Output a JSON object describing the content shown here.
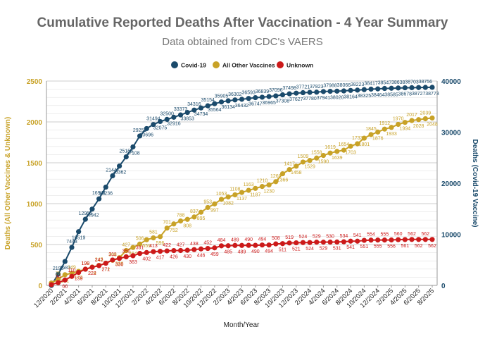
{
  "chart_data": {
    "type": "line",
    "title": "Cumulative Reported Deaths After Vaccination - 4 Year Summary",
    "subtitle": "Data obtained from CDC's VAERS",
    "xlabel": "Month/Year",
    "ylabel_left": "Deaths (All Other Vaccines & Unknown)",
    "ylabel_right": "Deaths (Covid-19 Vaccine)",
    "ylim_left": [
      0,
      2500
    ],
    "ylim_right": [
      0,
      40000
    ],
    "yticks_left": [
      0,
      500,
      1000,
      1500,
      2000,
      2500
    ],
    "yticks_right": [
      0,
      10000,
      20000,
      30000,
      40000
    ],
    "grid": true,
    "legend_position": "top-center",
    "x_tick_labels": [
      "12/2020",
      "2/2021",
      "4/2021",
      "6/2021",
      "8/2021",
      "10/2021",
      "12/2021",
      "2/2022",
      "4/2022",
      "6/2022",
      "8/2022",
      "10/2022",
      "12/2022",
      "2/2023",
      "4/2023",
      "6/2023",
      "8/2023",
      "10/2023",
      "12/2023",
      "2/2024",
      "4/2024",
      "6/2024",
      "8/2024",
      "10/2024",
      "12/2024",
      "2/2025",
      "4/2025",
      "6/2025",
      "8/2025"
    ],
    "series": [
      {
        "name": "Covid-19",
        "axis": "right",
        "color": "#1a4a6b",
        "values": [
          0,
          2196,
          4683,
          7443,
          10519,
          12953,
          14942,
          16941,
          19236,
          21447,
          23362,
          25158,
          27108,
          29251,
          30696,
          31494,
          32075,
          32500,
          32916,
          33373,
          33853,
          34316,
          34734,
          35154,
          35564,
          35905,
          36134,
          36302,
          36432,
          36593,
          36747,
          36839,
          36965,
          37096,
          37308,
          37498,
          37627,
          37721,
          37780,
          37823,
          37941,
          37988,
          38020,
          38066,
          38164,
          38223,
          38325,
          38417,
          38464,
          38547,
          38585,
          38638,
          38678,
          38703,
          38727,
          38756,
          38773
        ]
      },
      {
        "name": "All Other Vaccines",
        "axis": "left",
        "color": "#c8a227",
        "values": [
          29,
          75,
          131,
          149,
          172,
          199,
          224,
          245,
          272,
          308,
          339,
          427,
          464,
          506,
          559,
          581,
          596,
          701,
          752,
          788,
          808,
          837,
          895,
          953,
          997,
          1053,
          1082,
          1108,
          1137,
          1163,
          1187,
          1210,
          1230,
          1269,
          1366,
          1417,
          1458,
          1509,
          1529,
          1558,
          1590,
          1619,
          1639,
          1654,
          1703,
          1733,
          1801,
          1845,
          1876,
          1912,
          1933,
          1970,
          1994,
          2017,
          2028,
          2039,
          2048
        ]
      },
      {
        "name": "Unknown",
        "axis": "left",
        "color": "#cc1a1a",
        "values": [
          9,
          34,
          66,
          110,
          159,
          198,
          222,
          242,
          271,
          311,
          330,
          350,
          363,
          391,
          402,
          413,
          417,
          422,
          426,
          427,
          430,
          438,
          446,
          452,
          459,
          484,
          485,
          489,
          489,
          490,
          490,
          494,
          494,
          508,
          511,
          519,
          521,
          524,
          524,
          529,
          529,
          530,
          531,
          534,
          541,
          541,
          551,
          554,
          555,
          555,
          556,
          560,
          561,
          562,
          562,
          562,
          562
        ]
      }
    ],
    "data_labels": {
      "Covid-19": [
        "2196",
        "4683",
        "7443",
        "10519",
        "12953",
        "14942",
        "16941",
        "19236",
        "21447",
        "23362",
        "25158",
        "27108",
        "29251",
        "30696",
        "31494",
        "32075",
        "32500",
        "32916",
        "33373",
        "33853",
        "34316",
        "34734",
        "35154",
        "35564",
        "35905",
        "36134",
        "36302",
        "36432",
        "36593",
        "36747",
        "36839",
        "36965",
        "37096",
        "37308",
        "37498",
        "37627",
        "37721",
        "37780",
        "37823",
        "37941",
        "37988",
        "38020",
        "38066",
        "38164",
        "38223",
        "38325",
        "38417",
        "38464",
        "38547",
        "38585",
        "38638",
        "38678",
        "38703",
        "38727",
        "38756",
        "38773"
      ],
      "All Other Vaccines": [
        "75",
        "131",
        "149",
        "172",
        "199",
        "224",
        "245",
        "272",
        "308",
        "339",
        "427",
        "464",
        "506",
        "559",
        "581",
        "596",
        "701",
        "752",
        "788",
        "808",
        "837",
        "895",
        "953",
        "997",
        "1053",
        "1082",
        "1108",
        "1137",
        "1163",
        "1187",
        "1210",
        "1230",
        "1269",
        "1366",
        "1417",
        "1458",
        "1509",
        "1529",
        "1558",
        "1590",
        "1619",
        "1639",
        "1654",
        "1703",
        "1733",
        "1801",
        "1845",
        "1876",
        "1912",
        "1933",
        "1970",
        "1994",
        "2017",
        "2028",
        "2039",
        "2048"
      ],
      "Unknown": [
        "34",
        "66",
        "110",
        "159",
        "198",
        "222",
        "242",
        "271",
        "311",
        "330",
        "350",
        "363",
        "391",
        "402",
        "413",
        "417",
        "422",
        "426",
        "427",
        "430",
        "438",
        "446",
        "452",
        "459",
        "484",
        "485",
        "489",
        "489",
        "490",
        "490",
        "494",
        "494",
        "508",
        "511",
        "519",
        "521",
        "524",
        "524",
        "529",
        "529",
        "530",
        "531",
        "534",
        "541",
        "541",
        "551",
        "554",
        "555",
        "555",
        "556",
        "560",
        "561",
        "562",
        "562",
        "562",
        "562"
      ]
    }
  }
}
